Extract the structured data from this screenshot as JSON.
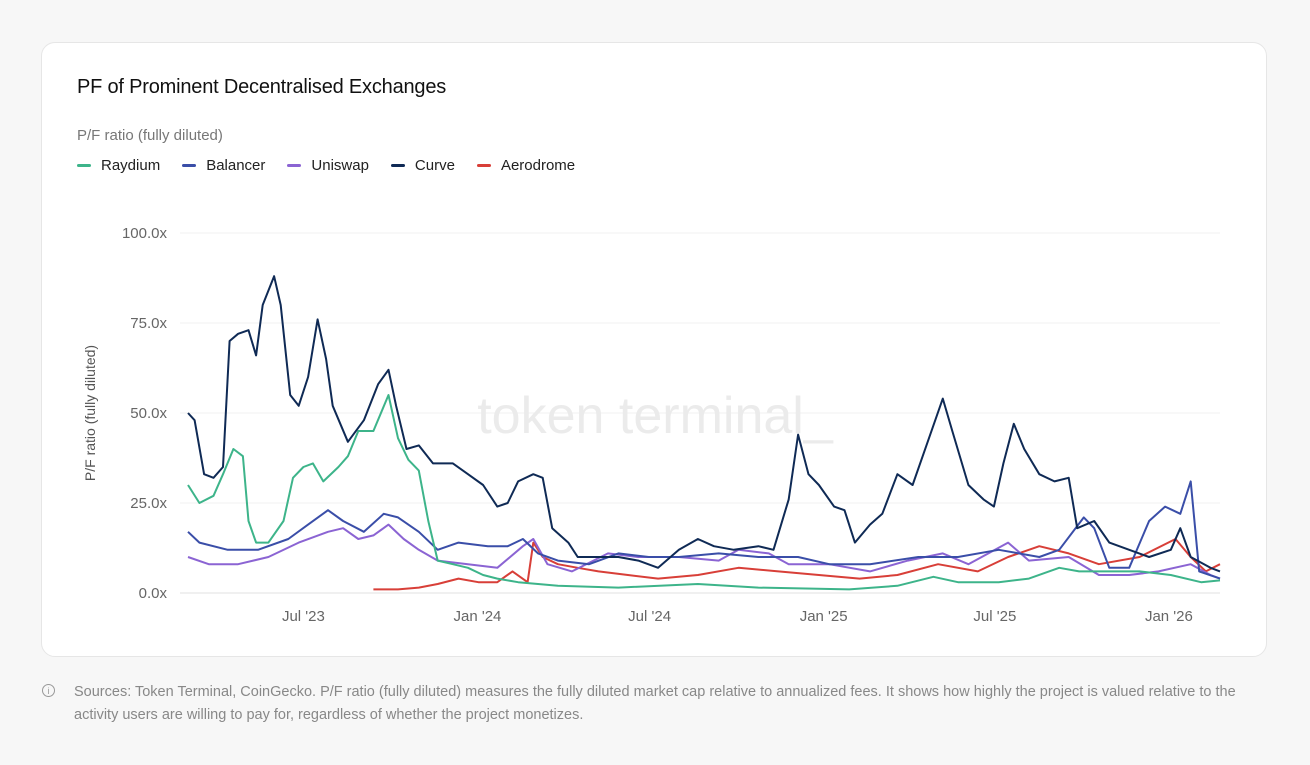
{
  "title": "PF of Prominent Decentralised Exchanges",
  "watermark": "token terminal_",
  "footer": {
    "icon": "info-icon",
    "text": "Sources: Token Terminal, CoinGecko. P/F ratio (fully diluted) measures the fully diluted market cap relative to annualized fees. It shows how highly the project is valued relative to the activity users are willing to pay for, regardless of whether the project monetizes."
  },
  "chart_data": {
    "type": "line",
    "title": "PF of Prominent Decentralised Exchanges",
    "subtitle": "P/F ratio (fully diluted)",
    "ylabel": "P/F ratio (fully diluted)",
    "xlabel": "",
    "ylim": [
      0,
      100
    ],
    "xlim": [
      "2023-03-01",
      "2026-02-24"
    ],
    "yticks": [
      "0.0x",
      "25.0x",
      "50.0x",
      "75.0x",
      "100.0x"
    ],
    "ytick_values": [
      0,
      25,
      50,
      75,
      100
    ],
    "xticks": [
      {
        "label": "Jul '23",
        "date": "2023-07-01"
      },
      {
        "label": "Jan '24",
        "date": "2024-01-01"
      },
      {
        "label": "Jul '24",
        "date": "2024-07-01"
      },
      {
        "label": "Jan '25",
        "date": "2025-01-01"
      },
      {
        "label": "Jul '25",
        "date": "2025-07-01"
      },
      {
        "label": "Jan '26",
        "date": "2026-01-01"
      }
    ],
    "grid": true,
    "legend_position": "top-left",
    "series": [
      {
        "name": "Raydium",
        "color": "#3db48a",
        "points": [
          [
            "2023-03-01",
            30
          ],
          [
            "2023-03-13",
            25
          ],
          [
            "2023-03-28",
            27
          ],
          [
            "2023-04-07",
            33
          ],
          [
            "2023-04-18",
            40
          ],
          [
            "2023-04-28",
            38
          ],
          [
            "2023-05-04",
            20
          ],
          [
            "2023-05-12",
            14
          ],
          [
            "2023-05-25",
            14
          ],
          [
            "2023-06-10",
            20
          ],
          [
            "2023-06-20",
            32
          ],
          [
            "2023-07-01",
            35
          ],
          [
            "2023-07-11",
            36
          ],
          [
            "2023-07-22",
            31
          ],
          [
            "2023-08-07",
            35
          ],
          [
            "2023-08-17",
            38
          ],
          [
            "2023-08-28",
            45
          ],
          [
            "2023-09-13",
            45
          ],
          [
            "2023-09-29",
            55
          ],
          [
            "2023-10-09",
            43
          ],
          [
            "2023-10-20",
            37
          ],
          [
            "2023-10-31",
            34
          ],
          [
            "2023-11-10",
            20
          ],
          [
            "2023-11-20",
            9
          ],
          [
            "2023-12-06",
            8
          ],
          [
            "2023-12-22",
            7
          ],
          [
            "2024-01-07",
            5
          ],
          [
            "2024-01-22",
            4
          ],
          [
            "2024-02-13",
            3
          ],
          [
            "2024-03-26",
            2
          ],
          [
            "2024-05-29",
            1.5
          ],
          [
            "2024-08-21",
            2.5
          ],
          [
            "2024-10-24",
            1.5
          ],
          [
            "2025-01-28",
            1
          ],
          [
            "2025-03-20",
            2
          ],
          [
            "2025-04-27",
            4.5
          ],
          [
            "2025-05-23",
            3
          ],
          [
            "2025-07-05",
            3
          ],
          [
            "2025-08-06",
            4
          ],
          [
            "2025-09-07",
            7
          ],
          [
            "2025-09-28",
            6
          ],
          [
            "2025-10-30",
            6
          ],
          [
            "2025-12-01",
            6
          ],
          [
            "2026-01-03",
            5
          ],
          [
            "2026-02-04",
            3
          ],
          [
            "2026-02-24",
            3.5
          ]
        ]
      },
      {
        "name": "Balancer",
        "color": "#3a4ea8",
        "points": [
          [
            "2023-03-01",
            17
          ],
          [
            "2023-03-13",
            14
          ],
          [
            "2023-04-12",
            12
          ],
          [
            "2023-05-14",
            12
          ],
          [
            "2023-06-15",
            15
          ],
          [
            "2023-07-06",
            19
          ],
          [
            "2023-07-27",
            23
          ],
          [
            "2023-08-12",
            20
          ],
          [
            "2023-09-03",
            17
          ],
          [
            "2023-09-24",
            22
          ],
          [
            "2023-10-09",
            21
          ],
          [
            "2023-10-31",
            17
          ],
          [
            "2023-11-20",
            12
          ],
          [
            "2023-12-12",
            14
          ],
          [
            "2024-01-12",
            13
          ],
          [
            "2024-02-02",
            13
          ],
          [
            "2024-02-18",
            15
          ],
          [
            "2024-03-05",
            11
          ],
          [
            "2024-03-26",
            9
          ],
          [
            "2024-04-28",
            8
          ],
          [
            "2024-05-29",
            11
          ],
          [
            "2024-06-30",
            10
          ],
          [
            "2024-08-01",
            10
          ],
          [
            "2024-09-12",
            11
          ],
          [
            "2024-10-24",
            10
          ],
          [
            "2024-12-05",
            10
          ],
          [
            "2025-01-07",
            8
          ],
          [
            "2025-02-19",
            8
          ],
          [
            "2025-04-11",
            10
          ],
          [
            "2025-05-23",
            10
          ],
          [
            "2025-07-05",
            12
          ],
          [
            "2025-08-17",
            10
          ],
          [
            "2025-09-07",
            12
          ],
          [
            "2025-10-03",
            21
          ],
          [
            "2025-10-14",
            18
          ],
          [
            "2025-10-30",
            7
          ],
          [
            "2025-11-20",
            7
          ],
          [
            "2025-12-11",
            20
          ],
          [
            "2025-12-28",
            24
          ],
          [
            "2026-01-13",
            22
          ],
          [
            "2026-01-24",
            31
          ],
          [
            "2026-02-02",
            6
          ],
          [
            "2026-02-24",
            4
          ]
        ]
      },
      {
        "name": "Uniswap",
        "color": "#8b64d3",
        "points": [
          [
            "2023-03-01",
            10
          ],
          [
            "2023-03-23",
            8
          ],
          [
            "2023-04-23",
            8
          ],
          [
            "2023-05-25",
            10
          ],
          [
            "2023-06-26",
            14
          ],
          [
            "2023-07-27",
            17
          ],
          [
            "2023-08-12",
            18
          ],
          [
            "2023-08-28",
            15
          ],
          [
            "2023-09-13",
            16
          ],
          [
            "2023-09-29",
            19
          ],
          [
            "2023-10-15",
            15
          ],
          [
            "2023-10-31",
            12
          ],
          [
            "2023-11-20",
            9
          ],
          [
            "2023-12-22",
            8
          ],
          [
            "2024-01-22",
            7
          ],
          [
            "2024-02-18",
            13
          ],
          [
            "2024-02-29",
            15
          ],
          [
            "2024-03-15",
            8
          ],
          [
            "2024-04-10",
            6
          ],
          [
            "2024-05-18",
            11
          ],
          [
            "2024-06-19",
            10
          ],
          [
            "2024-08-01",
            10
          ],
          [
            "2024-09-12",
            9
          ],
          [
            "2024-10-03",
            12
          ],
          [
            "2024-11-04",
            11
          ],
          [
            "2024-11-25",
            8
          ],
          [
            "2025-01-07",
            8
          ],
          [
            "2025-02-19",
            6
          ],
          [
            "2025-03-31",
            9
          ],
          [
            "2025-05-07",
            11
          ],
          [
            "2025-06-03",
            8
          ],
          [
            "2025-07-15",
            14
          ],
          [
            "2025-08-06",
            9
          ],
          [
            "2025-09-17",
            10
          ],
          [
            "2025-10-19",
            5
          ],
          [
            "2025-11-20",
            5
          ],
          [
            "2025-12-21",
            6
          ],
          [
            "2026-01-24",
            8
          ],
          [
            "2026-02-14",
            5
          ],
          [
            "2026-02-24",
            4
          ]
        ]
      },
      {
        "name": "Curve",
        "color": "#0f2a55",
        "points": [
          [
            "2023-03-01",
            50
          ],
          [
            "2023-03-08",
            48
          ],
          [
            "2023-03-18",
            33
          ],
          [
            "2023-03-28",
            32
          ],
          [
            "2023-04-07",
            35
          ],
          [
            "2023-04-14",
            70
          ],
          [
            "2023-04-23",
            72
          ],
          [
            "2023-05-04",
            73
          ],
          [
            "2023-05-12",
            66
          ],
          [
            "2023-05-19",
            80
          ],
          [
            "2023-05-31",
            88
          ],
          [
            "2023-06-07",
            80
          ],
          [
            "2023-06-17",
            55
          ],
          [
            "2023-06-26",
            52
          ],
          [
            "2023-07-06",
            60
          ],
          [
            "2023-07-16",
            76
          ],
          [
            "2023-07-25",
            65
          ],
          [
            "2023-08-01",
            52
          ],
          [
            "2023-08-17",
            42
          ],
          [
            "2023-09-03",
            48
          ],
          [
            "2023-09-18",
            58
          ],
          [
            "2023-09-29",
            62
          ],
          [
            "2023-10-07",
            52
          ],
          [
            "2023-10-18",
            40
          ],
          [
            "2023-10-31",
            41
          ],
          [
            "2023-11-15",
            36
          ],
          [
            "2023-12-06",
            36
          ],
          [
            "2023-12-22",
            33
          ],
          [
            "2024-01-07",
            30
          ],
          [
            "2024-01-22",
            24
          ],
          [
            "2024-02-02",
            25
          ],
          [
            "2024-02-13",
            31
          ],
          [
            "2024-02-29",
            33
          ],
          [
            "2024-03-10",
            32
          ],
          [
            "2024-03-20",
            18
          ],
          [
            "2024-04-06",
            14
          ],
          [
            "2024-04-16",
            10
          ],
          [
            "2024-05-08",
            10
          ],
          [
            "2024-05-29",
            10
          ],
          [
            "2024-06-19",
            9
          ],
          [
            "2024-07-10",
            7
          ],
          [
            "2024-08-01",
            12
          ],
          [
            "2024-08-21",
            15
          ],
          [
            "2024-09-07",
            13
          ],
          [
            "2024-09-28",
            12
          ],
          [
            "2024-10-24",
            13
          ],
          [
            "2024-11-09",
            12
          ],
          [
            "2024-11-25",
            26
          ],
          [
            "2024-12-05",
            44
          ],
          [
            "2024-12-16",
            33
          ],
          [
            "2024-12-27",
            30
          ],
          [
            "2025-01-12",
            24
          ],
          [
            "2025-01-23",
            23
          ],
          [
            "2025-02-03",
            14
          ],
          [
            "2025-02-19",
            19
          ],
          [
            "2025-03-04",
            22
          ],
          [
            "2025-03-20",
            33
          ],
          [
            "2025-04-05",
            30
          ],
          [
            "2025-04-21",
            42
          ],
          [
            "2025-05-07",
            54
          ],
          [
            "2025-05-17",
            45
          ],
          [
            "2025-06-03",
            30
          ],
          [
            "2025-06-19",
            26
          ],
          [
            "2025-06-30",
            24
          ],
          [
            "2025-07-10",
            36
          ],
          [
            "2025-07-21",
            47
          ],
          [
            "2025-08-01",
            40
          ],
          [
            "2025-08-17",
            33
          ],
          [
            "2025-09-02",
            31
          ],
          [
            "2025-09-17",
            32
          ],
          [
            "2025-09-26",
            18
          ],
          [
            "2025-10-14",
            20
          ],
          [
            "2025-10-30",
            14
          ],
          [
            "2025-11-20",
            12
          ],
          [
            "2025-12-11",
            10
          ],
          [
            "2026-01-03",
            12
          ],
          [
            "2026-01-13",
            18
          ],
          [
            "2026-01-24",
            10
          ],
          [
            "2026-02-14",
            7
          ],
          [
            "2026-02-24",
            6
          ]
        ]
      },
      {
        "name": "Aerodrome",
        "color": "#d83f38",
        "points": [
          [
            "2023-09-13",
            1
          ],
          [
            "2023-10-09",
            1
          ],
          [
            "2023-10-31",
            1.5
          ],
          [
            "2023-11-20",
            2.5
          ],
          [
            "2023-12-12",
            4
          ],
          [
            "2024-01-02",
            3
          ],
          [
            "2024-01-22",
            3
          ],
          [
            "2024-02-07",
            6
          ],
          [
            "2024-02-23",
            3
          ],
          [
            "2024-02-29",
            14
          ],
          [
            "2024-03-10",
            10
          ],
          [
            "2024-03-26",
            8
          ],
          [
            "2024-04-16",
            7
          ],
          [
            "2024-05-08",
            6
          ],
          [
            "2024-06-08",
            5
          ],
          [
            "2024-07-10",
            4
          ],
          [
            "2024-08-21",
            5
          ],
          [
            "2024-10-03",
            7
          ],
          [
            "2024-11-14",
            6
          ],
          [
            "2024-12-27",
            5
          ],
          [
            "2025-02-08",
            4
          ],
          [
            "2025-03-20",
            5
          ],
          [
            "2025-05-02",
            8
          ],
          [
            "2025-06-13",
            6
          ],
          [
            "2025-07-15",
            10
          ],
          [
            "2025-08-17",
            13
          ],
          [
            "2025-09-17",
            11
          ],
          [
            "2025-10-19",
            8
          ],
          [
            "2025-12-01",
            10
          ],
          [
            "2026-01-08",
            15
          ],
          [
            "2026-01-24",
            10
          ],
          [
            "2026-02-09",
            6
          ],
          [
            "2026-02-24",
            8
          ]
        ]
      }
    ]
  }
}
